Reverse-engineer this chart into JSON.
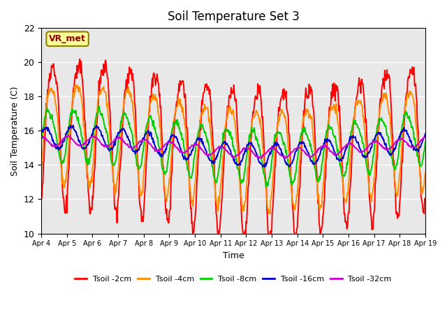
{
  "title": "Soil Temperature Set 3",
  "xlabel": "Time",
  "ylabel": "Soil Temperature (C)",
  "ylim": [
    10,
    22
  ],
  "xlim": [
    0,
    360
  ],
  "background_color": "#e8e8e8",
  "annotation_text": "VR_met",
  "annotation_bg": "#ffff99",
  "annotation_border": "#8B8000",
  "series_colors": [
    "#ff0000",
    "#ff8c00",
    "#00cc00",
    "#0000cd",
    "#cc00cc"
  ],
  "series_labels": [
    "Tsoil -2cm",
    "Tsoil -4cm",
    "Tsoil -8cm",
    "Tsoil -16cm",
    "Tsoil -32cm"
  ],
  "xtick_labels": [
    "Apr 4",
    "Apr 5",
    "Apr 6",
    "Apr 7",
    "Apr 8",
    "Apr 9",
    "Apr 10",
    "Apr 11",
    "Apr 12",
    "Apr 13",
    "Apr 14",
    "Apr 15",
    "Apr 16",
    "Apr 17",
    "Apr 18",
    "Apr 19"
  ],
  "xtick_positions": [
    0,
    24,
    48,
    72,
    96,
    120,
    144,
    168,
    192,
    216,
    240,
    264,
    288,
    312,
    336,
    360
  ],
  "ytick_positions": [
    10,
    12,
    14,
    16,
    18,
    20,
    22
  ]
}
